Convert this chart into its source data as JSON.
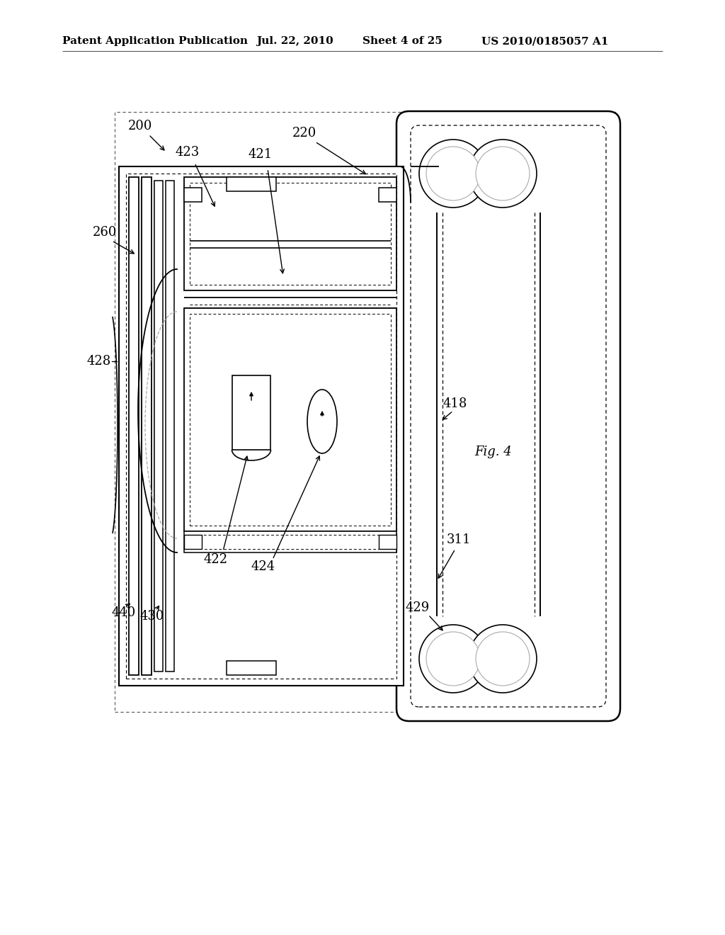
{
  "background_color": "#ffffff",
  "header_text": "Patent Application Publication",
  "header_date": "Jul. 22, 2010",
  "header_sheet": "Sheet 4 of 25",
  "header_patent": "US 2010/0185057 A1",
  "fig_label": "Fig. 4",
  "line_color": "#000000"
}
